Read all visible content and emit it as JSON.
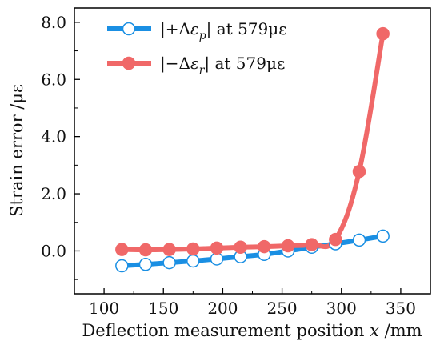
{
  "chart_data": {
    "type": "line",
    "title": "",
    "xlabel": "Deflection measurement position x /mm",
    "xlabel_main": "Deflection measurement position ",
    "xlabel_var": "x",
    "xlabel_unit": " /mm",
    "ylabel": "Strain error /με",
    "xlim": [
      75,
      375
    ],
    "ylim": [
      -1.5,
      8.5
    ],
    "xticks": [
      100,
      150,
      200,
      250,
      300,
      350
    ],
    "yticks": [
      0.0,
      2.0,
      4.0,
      6.0,
      8.0
    ],
    "xtick_labels": [
      "100",
      "150",
      "200",
      "250",
      "300",
      "350"
    ],
    "ytick_labels": [
      "0.0",
      "2.0",
      "4.0",
      "6.0",
      "8.0"
    ],
    "grid": false,
    "legend_position": "top-left",
    "series": [
      {
        "name": "|+Δεp| at 579με",
        "legend_parts": [
          "|+Δ",
          "ε",
          "p",
          "| at 579με"
        ],
        "color": "#1a8fe3",
        "marker": "open-circle",
        "x": [
          115,
          135,
          155,
          175,
          195,
          215,
          235,
          255,
          275,
          295,
          315,
          335
        ],
        "y": [
          -0.52,
          -0.47,
          -0.41,
          -0.35,
          -0.28,
          -0.2,
          -0.12,
          0.0,
          0.13,
          0.25,
          0.38,
          0.52
        ]
      },
      {
        "name": "|−Δεr| at 579με",
        "legend_parts": [
          "|−Δ",
          "ε",
          "r",
          "| at 579με"
        ],
        "color": "#f06868",
        "marker": "filled-circle",
        "x": [
          115,
          135,
          155,
          175,
          195,
          215,
          235,
          255,
          275,
          295,
          315,
          335
        ],
        "y": [
          0.05,
          0.04,
          0.05,
          0.07,
          0.1,
          0.13,
          0.15,
          0.18,
          0.22,
          0.4,
          2.78,
          7.6
        ]
      }
    ]
  }
}
